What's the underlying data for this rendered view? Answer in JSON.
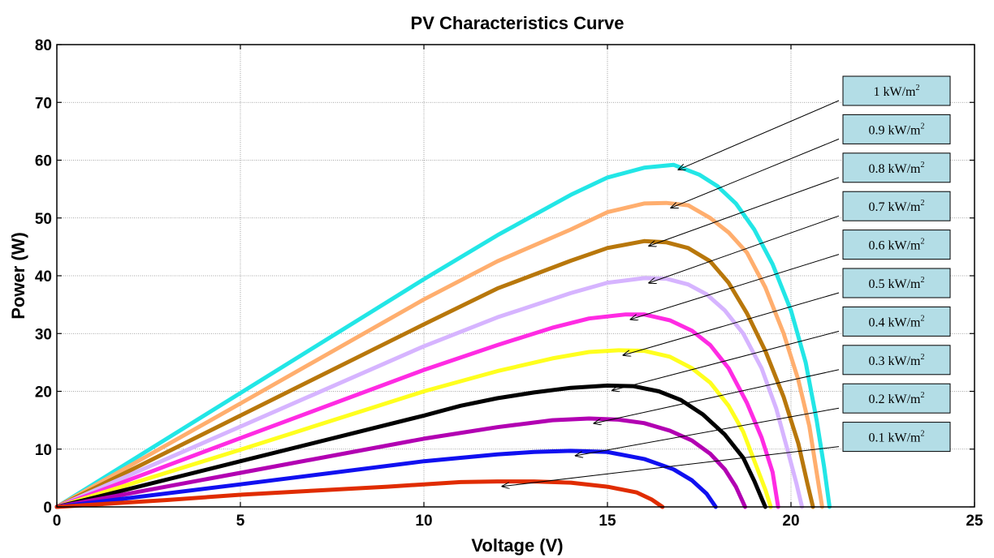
{
  "chart_data": {
    "type": "line",
    "title": "PV Characteristics Curve",
    "xlabel": "Voltage (V)",
    "ylabel": "Power (W)",
    "xlim": [
      0,
      25
    ],
    "ylim": [
      0,
      80
    ],
    "xticks": [
      0,
      5,
      10,
      15,
      20,
      25
    ],
    "yticks": [
      0,
      10,
      20,
      30,
      40,
      50,
      60,
      70,
      80
    ],
    "grid": true,
    "legend_placement": "right",
    "series": [
      {
        "name": "1 kW/m²",
        "color": "#22e6e6",
        "points": [
          [
            0,
            0
          ],
          [
            5,
            19.7
          ],
          [
            10,
            39.4
          ],
          [
            12,
            47
          ],
          [
            14,
            54
          ],
          [
            15,
            57
          ],
          [
            16,
            58.7
          ],
          [
            16.8,
            59.2
          ],
          [
            17.5,
            57.5
          ],
          [
            18,
            55.5
          ],
          [
            18.5,
            52.5
          ],
          [
            19,
            48
          ],
          [
            19.5,
            42
          ],
          [
            20,
            34
          ],
          [
            20.4,
            25
          ],
          [
            20.7,
            15
          ],
          [
            20.9,
            7
          ],
          [
            21.05,
            0
          ]
        ]
      },
      {
        "name": "0.9 kW/m²",
        "color": "#ffae6e",
        "points": [
          [
            0,
            0
          ],
          [
            5,
            17.9
          ],
          [
            10,
            35.9
          ],
          [
            12,
            42.5
          ],
          [
            14,
            48
          ],
          [
            15,
            51
          ],
          [
            16,
            52.5
          ],
          [
            16.6,
            52.6
          ],
          [
            17.2,
            52.2
          ],
          [
            17.8,
            50
          ],
          [
            18.3,
            47.5
          ],
          [
            18.8,
            44
          ],
          [
            19.3,
            38
          ],
          [
            19.8,
            30
          ],
          [
            20.2,
            22
          ],
          [
            20.5,
            14
          ],
          [
            20.7,
            6
          ],
          [
            20.85,
            0
          ]
        ]
      },
      {
        "name": "0.8 kW/m²",
        "color": "#b8770b",
        "points": [
          [
            0,
            0
          ],
          [
            5,
            15.8
          ],
          [
            10,
            31.6
          ],
          [
            12,
            37.8
          ],
          [
            14,
            42.6
          ],
          [
            15,
            44.8
          ],
          [
            16,
            46
          ],
          [
            16.6,
            45.8
          ],
          [
            17.2,
            44.8
          ],
          [
            17.8,
            42.5
          ],
          [
            18.3,
            38.8
          ],
          [
            18.8,
            33.5
          ],
          [
            19.3,
            27
          ],
          [
            19.8,
            19
          ],
          [
            20.2,
            11
          ],
          [
            20.45,
            4
          ],
          [
            20.6,
            0
          ]
        ]
      },
      {
        "name": "0.7 kW/m²",
        "color": "#d6b4ff",
        "points": [
          [
            0,
            0
          ],
          [
            5,
            13.9
          ],
          [
            10,
            27.8
          ],
          [
            12,
            32.8
          ],
          [
            14,
            37
          ],
          [
            15,
            38.8
          ],
          [
            16,
            39.6
          ],
          [
            16.6,
            39.5
          ],
          [
            17.2,
            38.5
          ],
          [
            17.7,
            36.8
          ],
          [
            18.2,
            34
          ],
          [
            18.7,
            30
          ],
          [
            19.2,
            24
          ],
          [
            19.6,
            17
          ],
          [
            19.9,
            10
          ],
          [
            20.15,
            4
          ],
          [
            20.3,
            0
          ]
        ]
      },
      {
        "name": "0.6 kW/m²",
        "color": "#ff2be3",
        "points": [
          [
            0,
            0
          ],
          [
            5,
            11.9
          ],
          [
            10,
            23.7
          ],
          [
            12,
            28
          ],
          [
            13.5,
            31
          ],
          [
            14.5,
            32.6
          ],
          [
            15.5,
            33.3
          ],
          [
            16,
            33.3
          ],
          [
            16.7,
            32.3
          ],
          [
            17.3,
            30.5
          ],
          [
            17.8,
            28
          ],
          [
            18.3,
            24
          ],
          [
            18.8,
            18
          ],
          [
            19.2,
            12
          ],
          [
            19.5,
            6
          ],
          [
            19.65,
            0
          ]
        ]
      },
      {
        "name": "0.5 kW/m²",
        "color": "#ffff1e",
        "points": [
          [
            0,
            0
          ],
          [
            5,
            9.9
          ],
          [
            10,
            20
          ],
          [
            12,
            23.5
          ],
          [
            13.5,
            25.7
          ],
          [
            14.5,
            26.8
          ],
          [
            15.3,
            27.1
          ],
          [
            16,
            27
          ],
          [
            16.7,
            26
          ],
          [
            17.3,
            24
          ],
          [
            17.8,
            21.5
          ],
          [
            18.3,
            17.5
          ],
          [
            18.7,
            13
          ],
          [
            19,
            8
          ],
          [
            19.3,
            3
          ],
          [
            19.45,
            0
          ]
        ]
      },
      {
        "name": "0.4 kW/m²",
        "color": "#000000",
        "points": [
          [
            0,
            0
          ],
          [
            5,
            7.9
          ],
          [
            10,
            15.8
          ],
          [
            11,
            17.5
          ],
          [
            12,
            18.8
          ],
          [
            13,
            19.8
          ],
          [
            14,
            20.6
          ],
          [
            15,
            21
          ],
          [
            15.7,
            20.9
          ],
          [
            16.4,
            20
          ],
          [
            17,
            18.5
          ],
          [
            17.6,
            16
          ],
          [
            18.2,
            12.5
          ],
          [
            18.7,
            8.5
          ],
          [
            19,
            4.5
          ],
          [
            19.2,
            1.5
          ],
          [
            19.3,
            0
          ]
        ]
      },
      {
        "name": "0.3 kW/m²",
        "color": "#b200b2",
        "points": [
          [
            0,
            0
          ],
          [
            5,
            5.9
          ],
          [
            10,
            11.8
          ],
          [
            12,
            13.8
          ],
          [
            13.5,
            15
          ],
          [
            14.5,
            15.3
          ],
          [
            15.3,
            15.1
          ],
          [
            16,
            14.5
          ],
          [
            16.7,
            13.2
          ],
          [
            17.3,
            11.5
          ],
          [
            17.8,
            9.2
          ],
          [
            18.2,
            6.5
          ],
          [
            18.5,
            3.5
          ],
          [
            18.75,
            0
          ]
        ]
      },
      {
        "name": "0.2 kW/m²",
        "color": "#1010f0",
        "points": [
          [
            0,
            0
          ],
          [
            5,
            3.9
          ],
          [
            10,
            7.9
          ],
          [
            12,
            9.1
          ],
          [
            13,
            9.5
          ],
          [
            14,
            9.7
          ],
          [
            15,
            9.5
          ],
          [
            16,
            8.3
          ],
          [
            16.8,
            6.5
          ],
          [
            17.3,
            4.6
          ],
          [
            17.7,
            2.3
          ],
          [
            17.95,
            0
          ]
        ]
      },
      {
        "name": "0.1 kW/m²",
        "color": "#e02c00",
        "points": [
          [
            0,
            0
          ],
          [
            3,
            1.2
          ],
          [
            5,
            2.1
          ],
          [
            7,
            2.8
          ],
          [
            9,
            3.5
          ],
          [
            10,
            3.9
          ],
          [
            11,
            4.3
          ],
          [
            12,
            4.4
          ],
          [
            13,
            4.4
          ],
          [
            14,
            4.2
          ],
          [
            15,
            3.5
          ],
          [
            15.8,
            2.5
          ],
          [
            16.2,
            1.3
          ],
          [
            16.5,
            0
          ]
        ]
      }
    ]
  }
}
